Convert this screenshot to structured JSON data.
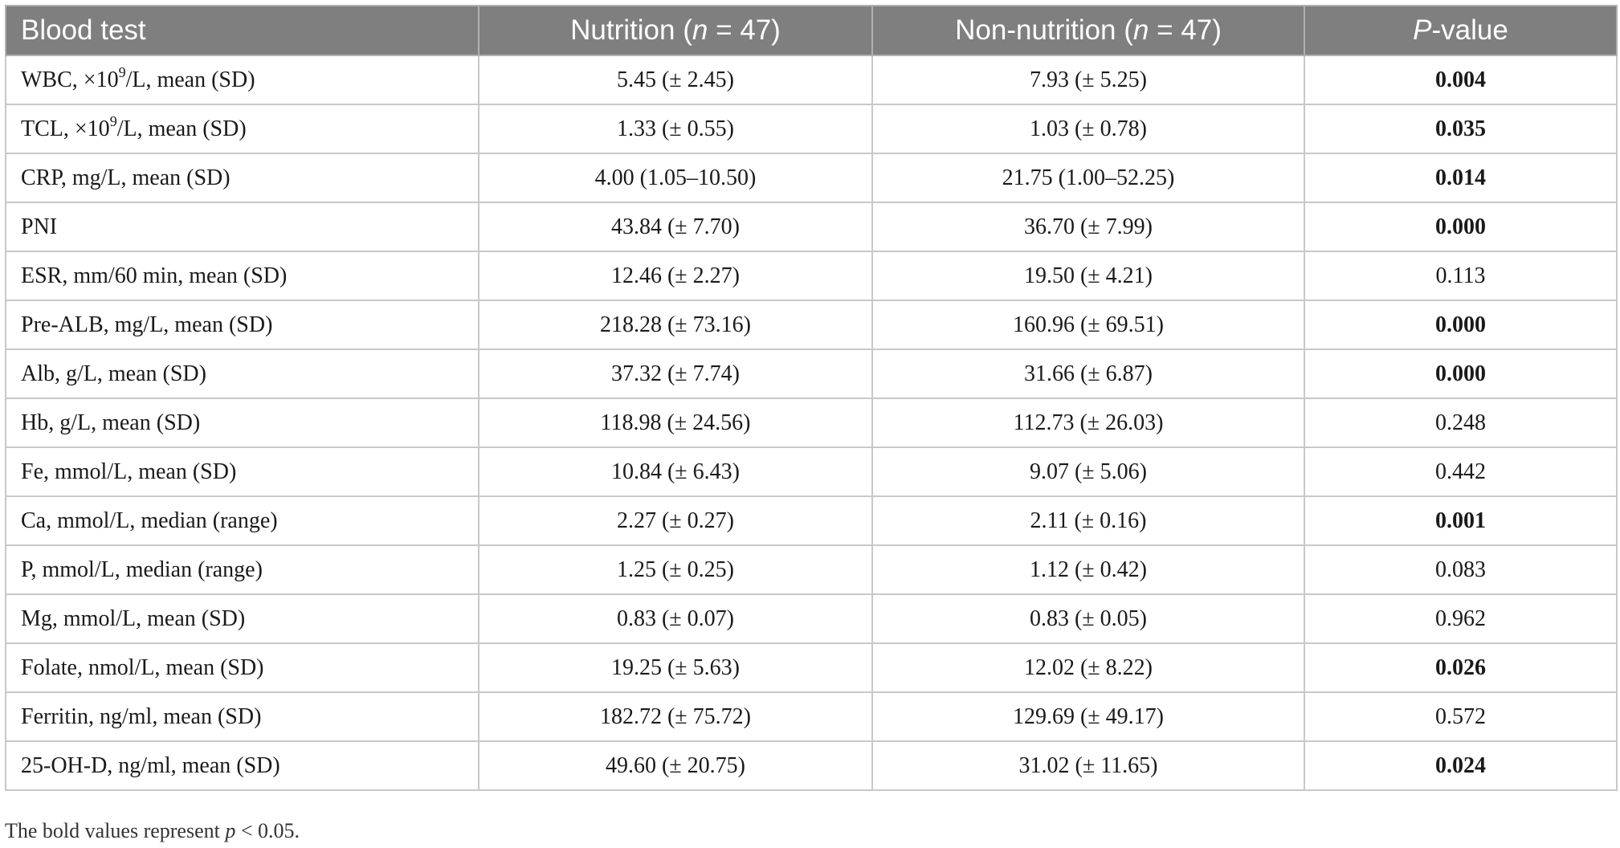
{
  "table": {
    "headers": {
      "col0": "Blood test",
      "col1_text": "Nutrition (",
      "col1_italic": "n",
      "col1_tail": " = 47)",
      "col2_text": "Non-nutrition (",
      "col2_italic": "n",
      "col2_tail": " = 47)",
      "col3_italic": "P",
      "col3_tail": "-value"
    },
    "rows": [
      {
        "label_pre": "WBC, ×10",
        "label_sup": "9",
        "label_post": "/L, mean (SD)",
        "nutrition": "5.45 (± 2.45)",
        "non_nutrition": "7.93 (± 5.25)",
        "p": "0.004",
        "bold": true
      },
      {
        "label_pre": "TCL, ×10",
        "label_sup": "9",
        "label_post": "/L, mean (SD)",
        "nutrition": "1.33 (± 0.55)",
        "non_nutrition": "1.03 (± 0.78)",
        "p": "0.035",
        "bold": true
      },
      {
        "label_pre": "CRP, mg/L, mean (SD)",
        "label_sup": "",
        "label_post": "",
        "nutrition": "4.00 (1.05–10.50)",
        "non_nutrition": "21.75 (1.00–52.25)",
        "p": "0.014",
        "bold": true
      },
      {
        "label_pre": "PNI",
        "label_sup": "",
        "label_post": "",
        "nutrition": "43.84 (± 7.70)",
        "non_nutrition": "36.70 (± 7.99)",
        "p": "0.000",
        "bold": true
      },
      {
        "label_pre": "ESR, mm/60 min, mean (SD)",
        "label_sup": "",
        "label_post": "",
        "nutrition": "12.46 (± 2.27)",
        "non_nutrition": "19.50 (± 4.21)",
        "p": "0.113",
        "bold": false
      },
      {
        "label_pre": "Pre-ALB, mg/L, mean (SD)",
        "label_sup": "",
        "label_post": "",
        "nutrition": "218.28 (± 73.16)",
        "non_nutrition": "160.96 (± 69.51)",
        "p": "0.000",
        "bold": true
      },
      {
        "label_pre": "Alb, g/L, mean (SD)",
        "label_sup": "",
        "label_post": "",
        "nutrition": "37.32 (± 7.74)",
        "non_nutrition": "31.66 (± 6.87)",
        "p": "0.000",
        "bold": true
      },
      {
        "label_pre": "Hb, g/L, mean (SD)",
        "label_sup": "",
        "label_post": "",
        "nutrition": "118.98 (± 24.56)",
        "non_nutrition": "112.73 (± 26.03)",
        "p": "0.248",
        "bold": false
      },
      {
        "label_pre": "Fe, mmol/L, mean (SD)",
        "label_sup": "",
        "label_post": "",
        "nutrition": "10.84 (± 6.43)",
        "non_nutrition": "9.07 (± 5.06)",
        "p": "0.442",
        "bold": false
      },
      {
        "label_pre": "Ca, mmol/L, median (range)",
        "label_sup": "",
        "label_post": "",
        "nutrition": "2.27 (± 0.27)",
        "non_nutrition": "2.11 (± 0.16)",
        "p": "0.001",
        "bold": true
      },
      {
        "label_pre": "P, mmol/L, median (range)",
        "label_sup": "",
        "label_post": "",
        "nutrition": "1.25 (± 0.25)",
        "non_nutrition": "1.12 (± 0.42)",
        "p": "0.083",
        "bold": false
      },
      {
        "label_pre": "Mg, mmol/L, mean (SD)",
        "label_sup": "",
        "label_post": "",
        "nutrition": "0.83 (± 0.07)",
        "non_nutrition": "0.83 (± 0.05)",
        "p": "0.962",
        "bold": false
      },
      {
        "label_pre": "Folate, nmol/L, mean (SD)",
        "label_sup": "",
        "label_post": "",
        "nutrition": "19.25 (± 5.63)",
        "non_nutrition": "12.02 (± 8.22)",
        "p": "0.026",
        "bold": true
      },
      {
        "label_pre": "Ferritin, ng/ml, mean (SD)",
        "label_sup": "",
        "label_post": "",
        "nutrition": "182.72 (± 75.72)",
        "non_nutrition": "129.69 (± 49.17)",
        "p": "0.572",
        "bold": false
      },
      {
        "label_pre": "25-OH-D, ng/ml, mean (SD)",
        "label_sup": "",
        "label_post": "",
        "nutrition": "49.60 (± 20.75)",
        "non_nutrition": "31.02 (± 11.65)",
        "p": "0.024",
        "bold": true
      }
    ]
  },
  "footnote": {
    "pre": "The bold values represent ",
    "italic": "p",
    "post": " < 0.05."
  },
  "colors": {
    "header_bg": "#7f7f7f",
    "header_text": "#ffffff",
    "border": "#c8c8c8"
  }
}
